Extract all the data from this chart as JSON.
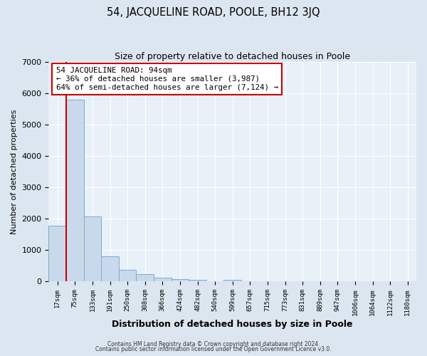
{
  "title": "54, JACQUELINE ROAD, POOLE, BH12 3JQ",
  "subtitle": "Size of property relative to detached houses in Poole",
  "xlabel": "Distribution of detached houses by size in Poole",
  "ylabel": "Number of detached properties",
  "bar_labels": [
    "17sqm",
    "75sqm",
    "133sqm",
    "191sqm",
    "250sqm",
    "308sqm",
    "366sqm",
    "424sqm",
    "482sqm",
    "540sqm",
    "599sqm",
    "657sqm",
    "715sqm",
    "773sqm",
    "831sqm",
    "889sqm",
    "947sqm",
    "1006sqm",
    "1064sqm",
    "1122sqm",
    "1180sqm"
  ],
  "bar_values": [
    1780,
    5800,
    2080,
    800,
    370,
    240,
    115,
    65,
    55,
    0,
    50,
    0,
    0,
    0,
    0,
    0,
    0,
    0,
    0,
    0,
    0
  ],
  "bar_color": "#c9d9ec",
  "bar_edge_color": "#7aaccc",
  "vline_color": "#cc0000",
  "vline_pos": 1.0,
  "annotation_title": "54 JACQUELINE ROAD: 94sqm",
  "annotation_line1": "← 36% of detached houses are smaller (3,987)",
  "annotation_line2": "64% of semi-detached houses are larger (7,124) →",
  "annotation_box_edge": "#cc0000",
  "ylim": [
    0,
    7000
  ],
  "yticks": [
    0,
    1000,
    2000,
    3000,
    4000,
    5000,
    6000,
    7000
  ],
  "footer1": "Contains HM Land Registry data © Crown copyright and database right 2024.",
  "footer2": "Contains public sector information licensed under the Open Government Licence v3.0.",
  "bg_color": "#dce6f0",
  "plot_bg_color": "#e8f0f8",
  "grid_color": "#ffffff",
  "title_fontsize": 10.5,
  "subtitle_fontsize": 9,
  "ylabel_fontsize": 8,
  "xlabel_fontsize": 9
}
